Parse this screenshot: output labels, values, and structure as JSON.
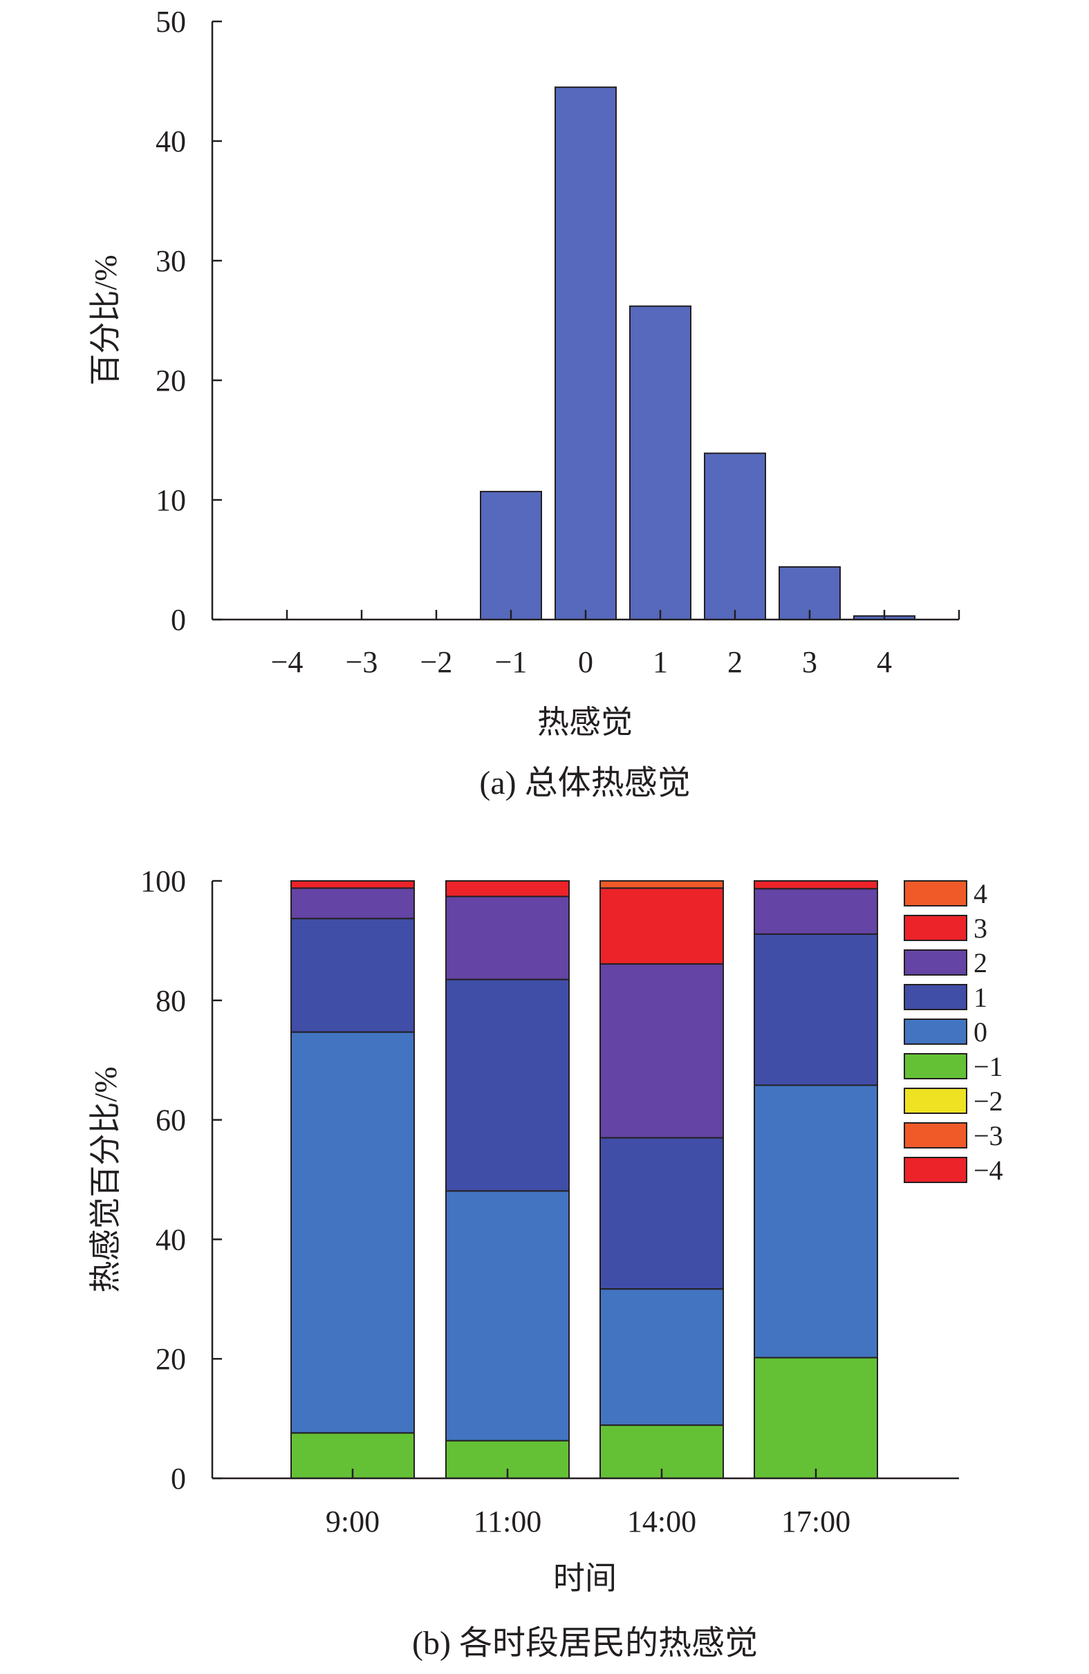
{
  "colors": {
    "axis": "#231f20",
    "bar_a": "#5669bd",
    "level_minus4": "#ec2329",
    "level_minus3": "#f05a28",
    "level_minus2": "#eee223",
    "level_minus1": "#64c136",
    "level_0": "#4274c1",
    "level_1": "#404ea8",
    "level_2": "#6444a4",
    "level_3": "#ec2329",
    "level_4": "#f05a28"
  },
  "chart_data": [
    {
      "type": "bar",
      "caption": "(a) 总体热感觉",
      "xlabel": "热感觉",
      "ylabel": "百分比/%",
      "categories": [
        "−4",
        "−3",
        "−2",
        "−1",
        "0",
        "1",
        "2",
        "3",
        "4"
      ],
      "values": [
        0,
        0,
        0,
        10.7,
        44.5,
        26.2,
        13.9,
        4.4,
        0.3
      ],
      "ylim": [
        0,
        50
      ],
      "yticks": [
        0,
        10,
        20,
        30,
        40,
        50
      ],
      "grid": false
    },
    {
      "type": "bar",
      "stacked": true,
      "caption": "(b) 各时段居民的热感觉",
      "xlabel": "时间",
      "ylabel": "热感觉百分比/%",
      "categories": [
        "9:00",
        "11:00",
        "14:00",
        "17:00"
      ],
      "ylim": [
        0,
        100
      ],
      "yticks": [
        0,
        20,
        40,
        60,
        80,
        100
      ],
      "grid": false,
      "legend_position": "right",
      "series": [
        {
          "name": "−4",
          "values": [
            0,
            0,
            0,
            0
          ]
        },
        {
          "name": "−3",
          "values": [
            0,
            0,
            0,
            0
          ]
        },
        {
          "name": "−2",
          "values": [
            0,
            0,
            0,
            0
          ]
        },
        {
          "name": "−1",
          "values": [
            7.6,
            6.3,
            8.9,
            20.2
          ]
        },
        {
          "name": "0",
          "values": [
            67.1,
            41.8,
            22.8,
            45.6
          ]
        },
        {
          "name": "1",
          "values": [
            19.0,
            35.4,
            25.3,
            25.3
          ]
        },
        {
          "name": "2",
          "values": [
            5.1,
            13.9,
            29.1,
            7.6
          ]
        },
        {
          "name": "3",
          "values": [
            1.2,
            2.6,
            12.7,
            1.3
          ]
        },
        {
          "name": "4",
          "values": [
            0,
            0,
            1.2,
            0
          ]
        }
      ]
    }
  ]
}
